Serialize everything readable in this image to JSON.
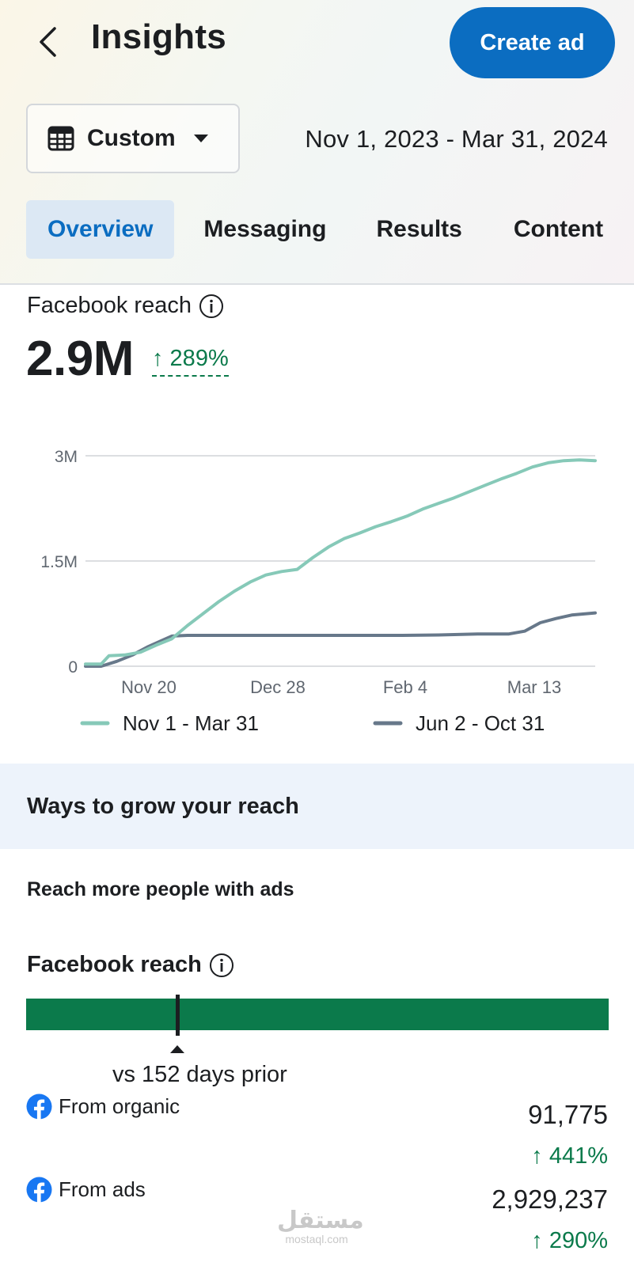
{
  "header": {
    "title": "Insights",
    "create_ad_label": "Create ad"
  },
  "date_filter": {
    "preset": "Custom",
    "range": "Nov 1, 2023 - Mar 31, 2024"
  },
  "tabs": [
    {
      "label": "Overview",
      "active": true
    },
    {
      "label": "Messaging",
      "active": false
    },
    {
      "label": "Results",
      "active": false
    },
    {
      "label": "Content",
      "active": false
    }
  ],
  "reach": {
    "label": "Facebook reach",
    "value": "2.9M",
    "change": "↑ 289%"
  },
  "chart_data": {
    "type": "line",
    "ytick_labels": [
      "0",
      "1.5M",
      "3M"
    ],
    "ylim": [
      0,
      3000000
    ],
    "xtick_labels": [
      "Nov 20",
      "Dec 28",
      "Feb 4",
      "Mar 13"
    ],
    "grid": true,
    "legend_position": "bottom",
    "series": [
      {
        "name": "Nov 1 - Mar 31",
        "color": "#86c9b8",
        "points": [
          [
            0,
            30000
          ],
          [
            4,
            30000
          ],
          [
            6,
            150000
          ],
          [
            10,
            160000
          ],
          [
            14,
            200000
          ],
          [
            18,
            300000
          ],
          [
            22,
            390000
          ],
          [
            26,
            580000
          ],
          [
            30,
            750000
          ],
          [
            34,
            920000
          ],
          [
            38,
            1070000
          ],
          [
            42,
            1200000
          ],
          [
            46,
            1300000
          ],
          [
            50,
            1350000
          ],
          [
            54,
            1380000
          ],
          [
            58,
            1550000
          ],
          [
            62,
            1700000
          ],
          [
            66,
            1820000
          ],
          [
            70,
            1900000
          ],
          [
            74,
            1990000
          ],
          [
            78,
            2060000
          ],
          [
            82,
            2140000
          ],
          [
            86,
            2240000
          ],
          [
            90,
            2320000
          ],
          [
            94,
            2400000
          ],
          [
            98,
            2490000
          ],
          [
            102,
            2580000
          ],
          [
            106,
            2670000
          ],
          [
            110,
            2750000
          ],
          [
            114,
            2840000
          ],
          [
            118,
            2900000
          ],
          [
            122,
            2930000
          ],
          [
            126,
            2940000
          ],
          [
            130,
            2930000
          ]
        ]
      },
      {
        "name": "Jun 2 - Oct 31",
        "color": "#67788a",
        "points": [
          [
            0,
            0
          ],
          [
            4,
            0
          ],
          [
            8,
            70000
          ],
          [
            12,
            160000
          ],
          [
            16,
            280000
          ],
          [
            20,
            380000
          ],
          [
            22,
            430000
          ],
          [
            26,
            440000
          ],
          [
            40,
            440000
          ],
          [
            60,
            440000
          ],
          [
            80,
            440000
          ],
          [
            90,
            445000
          ],
          [
            100,
            460000
          ],
          [
            108,
            460000
          ],
          [
            112,
            500000
          ],
          [
            116,
            620000
          ],
          [
            120,
            680000
          ],
          [
            124,
            730000
          ],
          [
            128,
            750000
          ],
          [
            130,
            760000
          ]
        ]
      }
    ]
  },
  "grow": {
    "title": "Ways to grow your reach",
    "subtitle": "Reach more people with ads"
  },
  "breakdown": {
    "label": "Facebook reach",
    "compare_label": "vs 152 days prior",
    "comparison_fraction": 0.26,
    "rows": [
      {
        "name": "From organic",
        "value": "91,775",
        "change": "↑ 441%"
      },
      {
        "name": "From ads",
        "value": "2,929,237",
        "change": "↑ 290%"
      }
    ]
  },
  "watermark": {
    "arabic": "مستقل",
    "latin": "mostaql.com"
  }
}
